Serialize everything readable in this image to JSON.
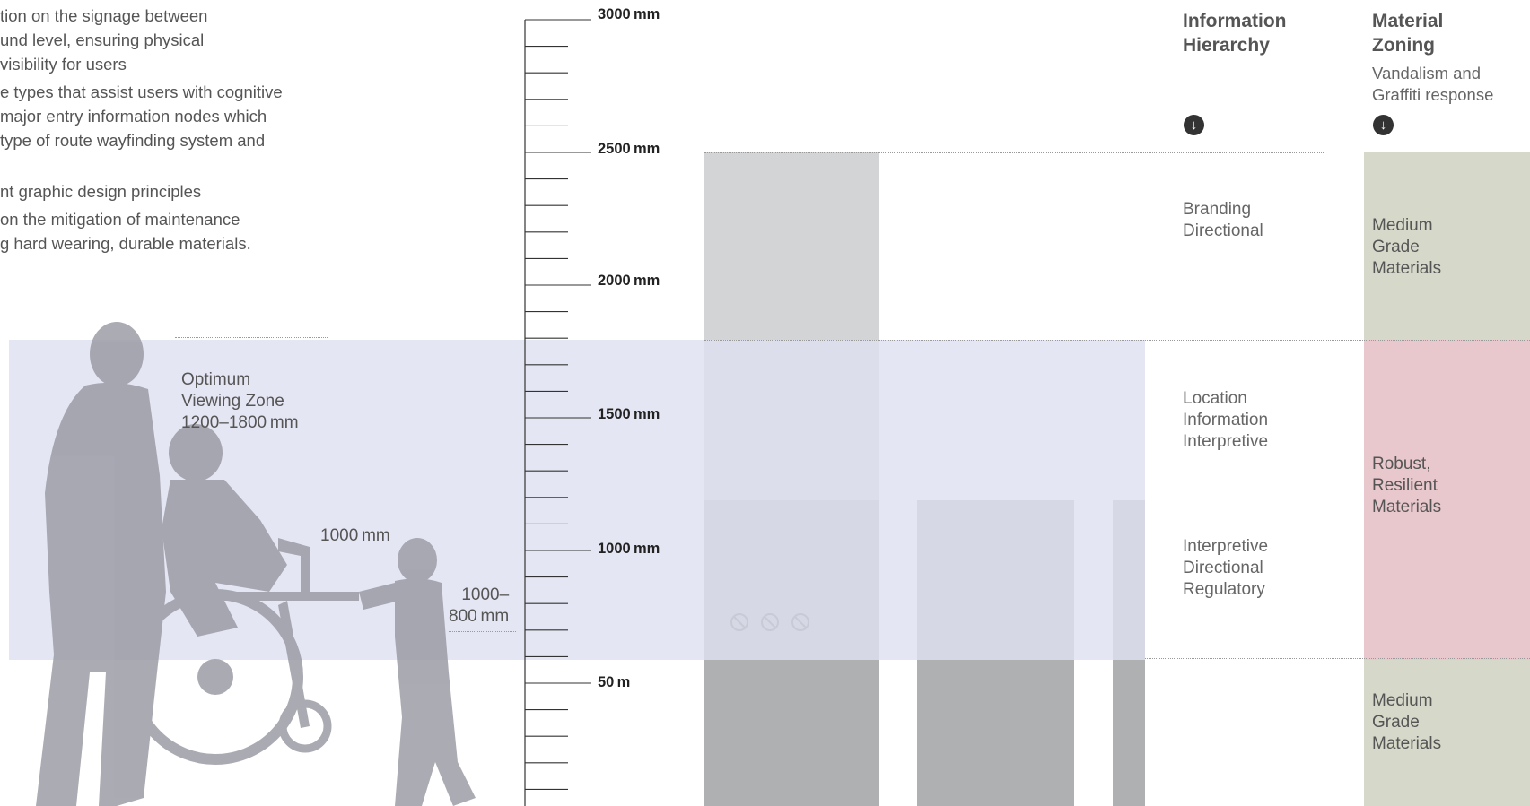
{
  "intro_lines": [
    "tion on the signage between",
    "und level, ensuring physical",
    "visibility for users",
    "e types that assist users with cognitive",
    "major entry information nodes which",
    " type of route wayfinding system and",
    "nt graphic design principles",
    "on the mitigation of maintenance",
    "g hard wearing, durable materials."
  ],
  "zone": {
    "title_line1": "Optimum",
    "title_line2": "Viewing Zone",
    "title_line3": "1200–1800 mm",
    "mark_1000": "1000 mm",
    "mark_range_line1": "1000–",
    "mark_range_line2": "800 mm"
  },
  "ruler_labels": [
    "3000 mm",
    "2500 mm",
    "2000 mm",
    "1500 mm",
    "1000 mm",
    "50 m"
  ],
  "info_hierarchy": {
    "heading_line1": "Information",
    "heading_line2": "Hierarchy",
    "icon": "arrow-down-circle-icon",
    "rows": [
      {
        "line1": "Branding",
        "line2": "Directional",
        "line3": ""
      },
      {
        "line1": "Location",
        "line2": "Information",
        "line3": "Interpretive"
      },
      {
        "line1": "Interpretive",
        "line2": "Directional",
        "line3": "Regulatory"
      }
    ]
  },
  "material_zoning": {
    "heading_line1": "Material",
    "heading_line2": "Zoning",
    "sub_line1": "Vandalism and",
    "sub_line2": "Graffiti response",
    "icon": "arrow-down-circle-icon",
    "rows": [
      {
        "line1": "Medium",
        "line2": "Grade",
        "line3": "Materials",
        "color": "#d6d9ca"
      },
      {
        "line1": "Robust,",
        "line2": "Resilient",
        "line3": "Materials",
        "color": "#e8c8cd"
      },
      {
        "line1": "Medium",
        "line2": "Grade",
        "line3": "Materials",
        "color": "#d6d9ca"
      }
    ]
  },
  "colors": {
    "zone_band": "#dfe1f0",
    "sign_light": "#d3d4d6",
    "sign_mid": "#b6b8c6",
    "sign_dark": "#aeb0b2",
    "silhouette": "#9c9ca6"
  },
  "icons": [
    "no-entry-icon",
    "no-entry-icon",
    "no-entry-icon"
  ]
}
